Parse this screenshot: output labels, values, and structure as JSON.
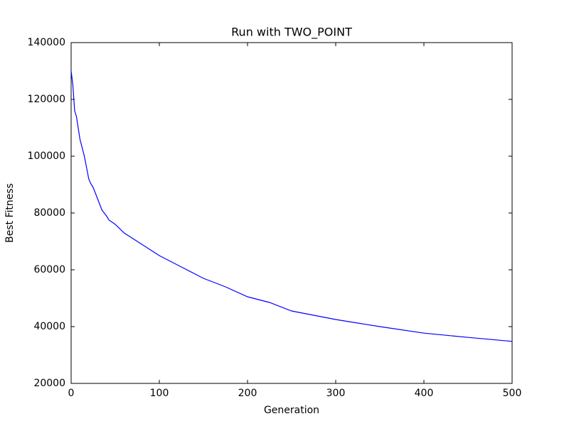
{
  "chart_data": {
    "type": "line",
    "title": "Run with TWO_POINT",
    "x_label": "Generation",
    "y_label": "Best Fitness",
    "x": [
      0,
      2,
      4,
      6,
      8,
      10,
      15,
      20,
      22,
      25,
      30,
      35,
      40,
      43,
      50,
      60,
      75,
      100,
      125,
      150,
      175,
      200,
      225,
      250,
      300,
      350,
      400,
      450,
      500
    ],
    "series": [
      {
        "name": "Best Fitness",
        "color": "#0000ff",
        "values": [
          130000,
          125000,
          116000,
          114000,
          110000,
          106000,
          100000,
          92000,
          90500,
          89000,
          85000,
          81000,
          79000,
          77500,
          76000,
          73000,
          70000,
          65000,
          61000,
          57000,
          54000,
          50500,
          48500,
          45500,
          42500,
          40000,
          37700,
          36200,
          34800
        ]
      }
    ],
    "xlim": [
      0,
      500
    ],
    "xticks": [
      0,
      100,
      200,
      300,
      400,
      500
    ],
    "ylim": [
      20000,
      140000
    ],
    "yticks": [
      20000,
      40000,
      60000,
      80000,
      100000,
      120000,
      140000
    ],
    "grid": false
  }
}
